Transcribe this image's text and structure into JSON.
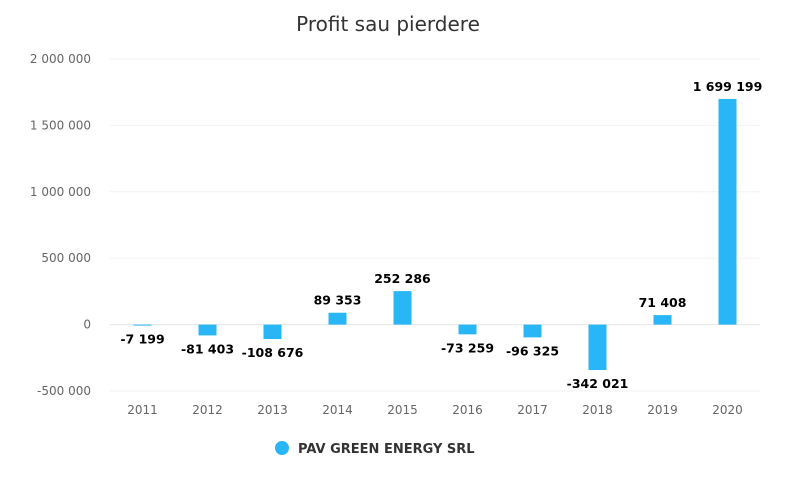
{
  "chart_data": {
    "type": "bar",
    "title": "Profit sau pierdere",
    "xlabel": "",
    "ylabel": "",
    "categories": [
      "2011",
      "2012",
      "2013",
      "2014",
      "2015",
      "2016",
      "2017",
      "2018",
      "2019",
      "2020"
    ],
    "series": [
      {
        "name": "PAV GREEN ENERGY SRL",
        "color": "#29b6f6",
        "values": [
          -7199,
          -81403,
          -108676,
          89353,
          252286,
          -73259,
          -96325,
          -342021,
          71408,
          1699199
        ],
        "labels": [
          "-7 199",
          "-81 403",
          "-108 676",
          "89 353",
          "252 286",
          "-73 259",
          "-96 325",
          "-342 021",
          "71 408",
          "1 699 199"
        ]
      }
    ],
    "ylim": [
      -500000,
      2000000
    ],
    "yticks": [
      2000000,
      1500000,
      1000000,
      500000,
      0,
      -500000
    ],
    "ytick_labels": [
      "2 000 000",
      "1 500 000",
      "1 000 000",
      "500 000",
      "0",
      "-500 000"
    ],
    "grid": true,
    "legend_position": "bottom"
  }
}
